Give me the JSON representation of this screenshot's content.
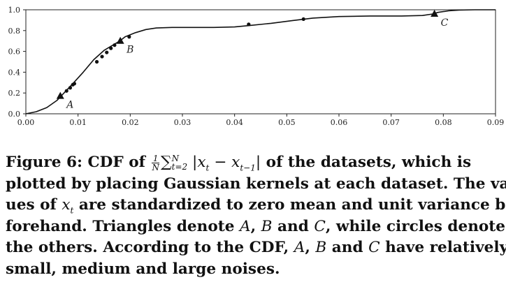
{
  "chart_data": {
    "type": "line",
    "title": "",
    "xlabel": "",
    "ylabel": "",
    "xlim": [
      0,
      0.09
    ],
    "ylim": [
      0,
      1.0
    ],
    "x_ticks": [
      "0.00",
      "0.01",
      "0.02",
      "0.03",
      "0.04",
      "0.05",
      "0.06",
      "0.07",
      "0.08",
      "0.09"
    ],
    "y_ticks": [
      "0.0",
      "0.2",
      "0.4",
      "0.6",
      "0.8",
      "1.0"
    ],
    "grid": false,
    "series": [
      {
        "style": "curve",
        "x": [
          0,
          0.002,
          0.004,
          0.006,
          0.0075,
          0.009,
          0.011,
          0.013,
          0.015,
          0.017,
          0.018,
          0.019,
          0.021,
          0.023,
          0.025,
          0.028,
          0.032,
          0.036,
          0.04,
          0.043,
          0.047,
          0.051,
          0.055,
          0.06,
          0.066,
          0.072,
          0.076,
          0.078,
          0.079,
          0.081,
          0.083,
          0.086,
          0.09
        ],
        "y": [
          0,
          0.02,
          0.06,
          0.13,
          0.21,
          0.29,
          0.4,
          0.52,
          0.61,
          0.67,
          0.7,
          0.74,
          0.78,
          0.81,
          0.825,
          0.83,
          0.83,
          0.83,
          0.835,
          0.85,
          0.87,
          0.895,
          0.92,
          0.935,
          0.94,
          0.94,
          0.945,
          0.96,
          0.975,
          0.99,
          0.997,
          1.0,
          1.0
        ]
      },
      {
        "name": "circles",
        "style": "circle",
        "x": [
          0.0078,
          0.0085,
          0.009,
          0.0093,
          0.0136,
          0.0146,
          0.0155,
          0.0163,
          0.017,
          0.0198,
          0.0427,
          0.0532
        ],
        "y": [
          0.22,
          0.25,
          0.28,
          0.29,
          0.5,
          0.55,
          0.59,
          0.63,
          0.66,
          0.74,
          0.86,
          0.91
        ]
      },
      {
        "name": "triangles",
        "style": "triangle",
        "x": [
          0.0066,
          0.0181,
          0.0783
        ],
        "y": [
          0.17,
          0.7,
          0.96
        ],
        "labels": [
          "A",
          "B",
          "C"
        ]
      }
    ]
  },
  "caption": {
    "line1_a": "Figure 6: CDF of ",
    "frac_num": "1",
    "frac_den": "N",
    "sum": "∑",
    "sum_sup": "N",
    "sum_sub": "t=2",
    "abs_open": " |",
    "x1": "x",
    "x1_sub": "t",
    "minus": " − ",
    "x2": "x",
    "x2_sub": "t−1",
    "abs_close": "|",
    "line1_b": " of the datasets, which is",
    "line2": "plotted by placing Gaussian kernels at each dataset. The val-",
    "line3_a": "ues of ",
    "line3_x": "x",
    "line3_sub": "t",
    "line3_b": " are standardized to zero mean and unit variance be-",
    "line4_a": "forehand. Triangles denote ",
    "line4_A": "A",
    "line4_b": ", ",
    "line4_B": "B",
    "line4_c": " and ",
    "line4_C": "C",
    "line4_d": ", while circles denote",
    "line5_a": "the others. According to the CDF, ",
    "line5_A": "A",
    "line5_b": ", ",
    "line5_B": "B",
    "line5_c": " and ",
    "line5_C": "C",
    "line5_d": " have relatively",
    "line6": "small, medium and large noises."
  }
}
